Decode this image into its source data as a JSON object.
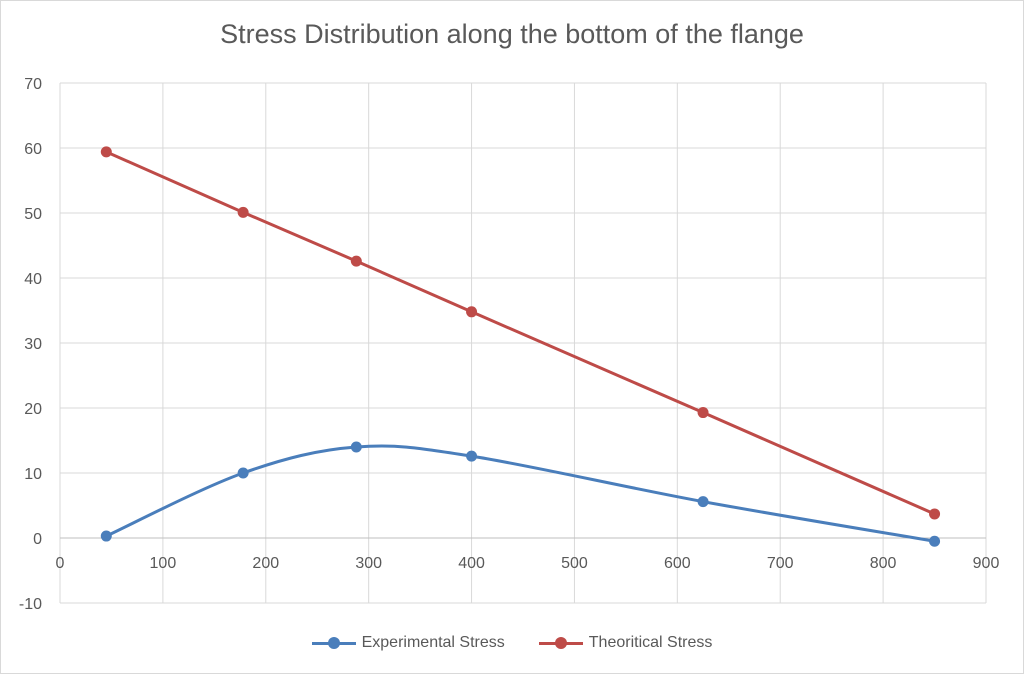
{
  "chart_data": {
    "type": "line",
    "title": "Stress Distribution along the bottom of the flange",
    "xlabel": "",
    "ylabel": "",
    "xlim": [
      0,
      900
    ],
    "ylim": [
      -10,
      70
    ],
    "x_ticks": [
      0,
      100,
      200,
      300,
      400,
      500,
      600,
      700,
      800,
      900
    ],
    "y_ticks": [
      -10,
      0,
      10,
      20,
      30,
      40,
      50,
      60,
      70
    ],
    "grid": true,
    "legend_position": "bottom",
    "series": [
      {
        "name": "Experimental Stress",
        "color": "#4a7ebb",
        "smooth": true,
        "x": [
          45,
          178,
          288,
          400,
          625,
          850
        ],
        "y": [
          0.3,
          10.0,
          14.0,
          12.6,
          5.6,
          -0.5
        ]
      },
      {
        "name": "Theoritical Stress",
        "color": "#be4b48",
        "smooth": false,
        "x": [
          45,
          178,
          288,
          400,
          625,
          850
        ],
        "y": [
          59.4,
          50.1,
          42.6,
          34.8,
          19.3,
          3.7
        ]
      }
    ]
  }
}
